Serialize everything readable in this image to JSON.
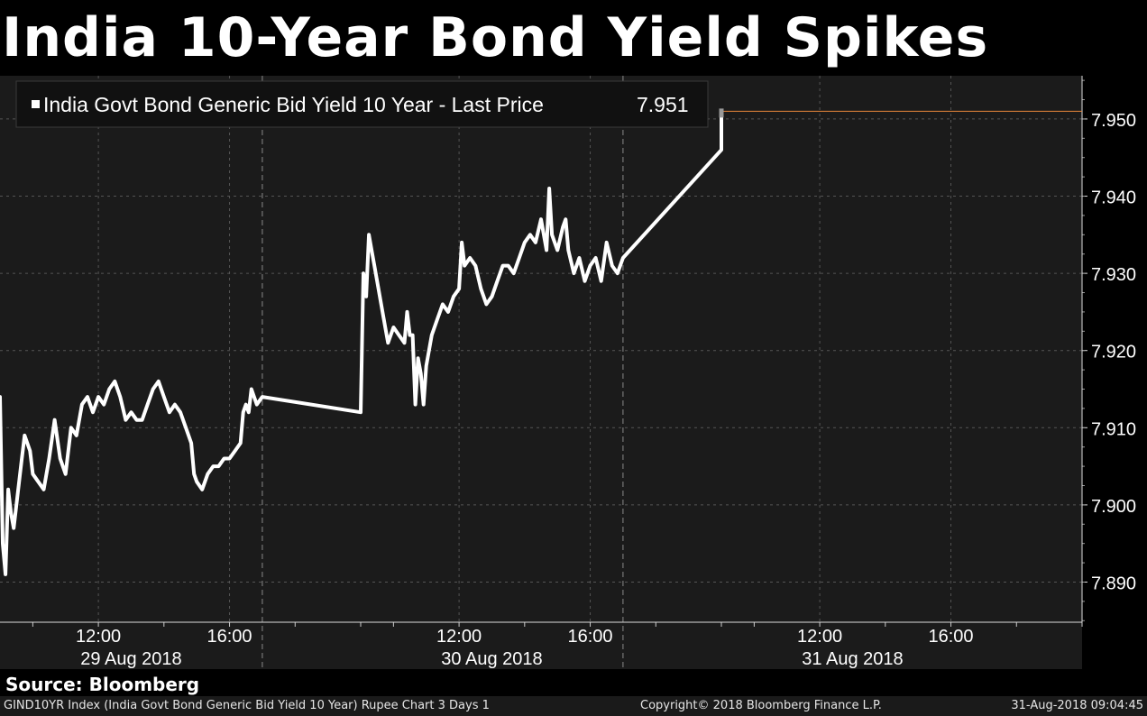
{
  "title": "India 10-Year Bond Yield Spikes",
  "source": "Source: Bloomberg",
  "footer": {
    "left": "GIND10YR Index (India Govt Bond Generic Bid Yield 10 Year) Rupee Chart 3 Days 1",
    "center": "Copyright© 2018 Bloomberg Finance L.P.",
    "right": "31-Aug-2018 09:04:45"
  },
  "colors": {
    "background": "#000000",
    "plot_background": "#1b1b1b",
    "line": "#ffffff",
    "last_price_line": "#e8873a",
    "grid": "#555555"
  },
  "chart_data": {
    "type": "line",
    "legend": "India Govt Bond Generic Bid Yield 10 Year - Last Price",
    "last_price": "7.951",
    "last_price_value": 7.951,
    "legend_position": "top-left",
    "grid": true,
    "ylim": [
      7.8848,
      7.9556
    ],
    "yticks": [
      7.89,
      7.9,
      7.91,
      7.92,
      7.93,
      7.94,
      7.95
    ],
    "ytick_labels": [
      "7.890",
      "7.900",
      "7.910",
      "7.920",
      "7.930",
      "7.940",
      "7.950"
    ],
    "xlim": [
      "2018-08-29 09:00",
      "2018-08-31 20:00"
    ],
    "xticks": [
      {
        "time": "2018-08-29 12:00",
        "label": "12:00"
      },
      {
        "time": "2018-08-29 16:00",
        "label": "16:00"
      },
      {
        "time": "2018-08-30 12:00",
        "label": "12:00"
      },
      {
        "time": "2018-08-30 16:00",
        "label": "16:00"
      },
      {
        "time": "2018-08-31 12:00",
        "label": "12:00"
      },
      {
        "time": "2018-08-31 16:00",
        "label": "16:00"
      }
    ],
    "days": [
      {
        "label": "29 Aug 2018",
        "center": "2018-08-29 13:00"
      },
      {
        "label": "30 Aug 2018",
        "center": "2018-08-30 13:00"
      },
      {
        "label": "31 Aug 2018",
        "center": "2018-08-31 13:00"
      }
    ],
    "day_separators": [
      "2018-08-29 17:00",
      "2018-08-30 17:00"
    ],
    "series": [
      {
        "values": [
          [
            "2018-08-29 09:00",
            7.914
          ],
          [
            "2018-08-29 09:05",
            7.895
          ],
          [
            "2018-08-29 09:10",
            7.891
          ],
          [
            "2018-08-29 09:15",
            7.902
          ],
          [
            "2018-08-29 09:20",
            7.899
          ],
          [
            "2018-08-29 09:25",
            7.897
          ],
          [
            "2018-08-29 09:30",
            7.9
          ],
          [
            "2018-08-29 09:35",
            7.903
          ],
          [
            "2018-08-29 09:40",
            7.906
          ],
          [
            "2018-08-29 09:45",
            7.909
          ],
          [
            "2018-08-29 09:55",
            7.907
          ],
          [
            "2018-08-29 10:00",
            7.904
          ],
          [
            "2018-08-29 10:10",
            7.903
          ],
          [
            "2018-08-29 10:20",
            7.902
          ],
          [
            "2018-08-29 10:30",
            7.906
          ],
          [
            "2018-08-29 10:40",
            7.911
          ],
          [
            "2018-08-29 10:50",
            7.906
          ],
          [
            "2018-08-29 11:00",
            7.904
          ],
          [
            "2018-08-29 11:10",
            7.91
          ],
          [
            "2018-08-29 11:20",
            7.909
          ],
          [
            "2018-08-29 11:30",
            7.913
          ],
          [
            "2018-08-29 11:40",
            7.914
          ],
          [
            "2018-08-29 11:50",
            7.912
          ],
          [
            "2018-08-29 12:00",
            7.914
          ],
          [
            "2018-08-29 12:10",
            7.913
          ],
          [
            "2018-08-29 12:20",
            7.915
          ],
          [
            "2018-08-29 12:30",
            7.916
          ],
          [
            "2018-08-29 12:40",
            7.914
          ],
          [
            "2018-08-29 12:50",
            7.911
          ],
          [
            "2018-08-29 13:00",
            7.912
          ],
          [
            "2018-08-29 13:10",
            7.911
          ],
          [
            "2018-08-29 13:20",
            7.911
          ],
          [
            "2018-08-29 13:30",
            7.913
          ],
          [
            "2018-08-29 13:40",
            7.915
          ],
          [
            "2018-08-29 13:50",
            7.916
          ],
          [
            "2018-08-29 14:00",
            7.914
          ],
          [
            "2018-08-29 14:10",
            7.912
          ],
          [
            "2018-08-29 14:20",
            7.913
          ],
          [
            "2018-08-29 14:30",
            7.912
          ],
          [
            "2018-08-29 14:40",
            7.91
          ],
          [
            "2018-08-29 14:50",
            7.908
          ],
          [
            "2018-08-29 14:55",
            7.904
          ],
          [
            "2018-08-29 15:00",
            7.903
          ],
          [
            "2018-08-29 15:10",
            7.902
          ],
          [
            "2018-08-29 15:20",
            7.904
          ],
          [
            "2018-08-29 15:30",
            7.905
          ],
          [
            "2018-08-29 15:40",
            7.905
          ],
          [
            "2018-08-29 15:50",
            7.906
          ],
          [
            "2018-08-29 16:00",
            7.906
          ],
          [
            "2018-08-29 16:10",
            7.907
          ],
          [
            "2018-08-29 16:20",
            7.908
          ],
          [
            "2018-08-29 16:25",
            7.912
          ],
          [
            "2018-08-29 16:30",
            7.913
          ],
          [
            "2018-08-29 16:35",
            7.912
          ],
          [
            "2018-08-29 16:40",
            7.915
          ],
          [
            "2018-08-29 16:45",
            7.914
          ],
          [
            "2018-08-29 16:50",
            7.913
          ],
          [
            "2018-08-29 17:00",
            7.914
          ],
          [
            "2018-08-30 09:00",
            7.912
          ],
          [
            "2018-08-30 09:05",
            7.93
          ],
          [
            "2018-08-30 09:10",
            7.927
          ],
          [
            "2018-08-30 09:15",
            7.935
          ],
          [
            "2018-08-30 09:20",
            7.933
          ],
          [
            "2018-08-30 09:25",
            7.931
          ],
          [
            "2018-08-30 09:30",
            7.929
          ],
          [
            "2018-08-30 09:40",
            7.925
          ],
          [
            "2018-08-30 09:50",
            7.921
          ],
          [
            "2018-08-30 10:00",
            7.923
          ],
          [
            "2018-08-30 10:10",
            7.922
          ],
          [
            "2018-08-30 10:20",
            7.921
          ],
          [
            "2018-08-30 10:25",
            7.925
          ],
          [
            "2018-08-30 10:30",
            7.922
          ],
          [
            "2018-08-30 10:35",
            7.922
          ],
          [
            "2018-08-30 10:40",
            7.913
          ],
          [
            "2018-08-30 10:45",
            7.919
          ],
          [
            "2018-08-30 10:50",
            7.917
          ],
          [
            "2018-08-30 10:55",
            7.913
          ],
          [
            "2018-08-30 11:00",
            7.918
          ],
          [
            "2018-08-30 11:10",
            7.922
          ],
          [
            "2018-08-30 11:20",
            7.924
          ],
          [
            "2018-08-30 11:30",
            7.926
          ],
          [
            "2018-08-30 11:40",
            7.925
          ],
          [
            "2018-08-30 11:50",
            7.927
          ],
          [
            "2018-08-30 12:00",
            7.928
          ],
          [
            "2018-08-30 12:05",
            7.934
          ],
          [
            "2018-08-30 12:10",
            7.931
          ],
          [
            "2018-08-30 12:20",
            7.932
          ],
          [
            "2018-08-30 12:30",
            7.931
          ],
          [
            "2018-08-30 12:40",
            7.928
          ],
          [
            "2018-08-30 12:50",
            7.926
          ],
          [
            "2018-08-30 13:00",
            7.927
          ],
          [
            "2018-08-30 13:10",
            7.929
          ],
          [
            "2018-08-30 13:20",
            7.931
          ],
          [
            "2018-08-30 13:30",
            7.931
          ],
          [
            "2018-08-30 13:40",
            7.93
          ],
          [
            "2018-08-30 13:50",
            7.932
          ],
          [
            "2018-08-30 14:00",
            7.934
          ],
          [
            "2018-08-30 14:10",
            7.935
          ],
          [
            "2018-08-30 14:20",
            7.934
          ],
          [
            "2018-08-30 14:30",
            7.937
          ],
          [
            "2018-08-30 14:40",
            7.933
          ],
          [
            "2018-08-30 14:45",
            7.941
          ],
          [
            "2018-08-30 14:50",
            7.935
          ],
          [
            "2018-08-30 15:00",
            7.933
          ],
          [
            "2018-08-30 15:10",
            7.936
          ],
          [
            "2018-08-30 15:15",
            7.937
          ],
          [
            "2018-08-30 15:20",
            7.933
          ],
          [
            "2018-08-30 15:30",
            7.93
          ],
          [
            "2018-08-30 15:40",
            7.932
          ],
          [
            "2018-08-30 15:50",
            7.929
          ],
          [
            "2018-08-30 16:00",
            7.931
          ],
          [
            "2018-08-30 16:10",
            7.932
          ],
          [
            "2018-08-30 16:20",
            7.929
          ],
          [
            "2018-08-30 16:30",
            7.934
          ],
          [
            "2018-08-30 16:40",
            7.931
          ],
          [
            "2018-08-30 16:50",
            7.93
          ],
          [
            "2018-08-30 17:00",
            7.932
          ],
          [
            "2018-08-31 09:00",
            7.946
          ],
          [
            "2018-08-31 09:00",
            7.951
          ]
        ]
      }
    ]
  }
}
